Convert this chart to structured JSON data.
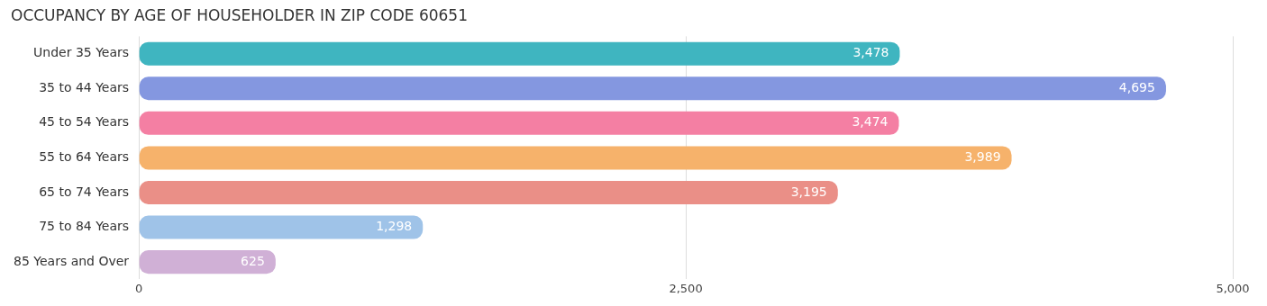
{
  "chart_data": {
    "type": "bar",
    "orientation": "horizontal",
    "title": "OCCUPANCY BY AGE OF HOUSEHOLDER IN ZIP CODE 60651",
    "categories": [
      "Under 35 Years",
      "35 to 44 Years",
      "45 to 54 Years",
      "55 to 64 Years",
      "65 to 74 Years",
      "75 to 84 Years",
      "85 Years and Over"
    ],
    "values": [
      3478,
      4695,
      3474,
      3989,
      3195,
      1298,
      625
    ],
    "value_labels": [
      "3,478",
      "4,695",
      "3,474",
      "3,989",
      "3,195",
      "1,298",
      "625"
    ],
    "colors": [
      "#3fb5c0",
      "#8497e0",
      "#f47fa3",
      "#f6b26b",
      "#ea8f87",
      "#9fc3e8",
      "#d0b0d6"
    ],
    "xlim": [
      0,
      5000
    ],
    "xticks": [
      0,
      {
        "value": 2500,
        "label": "2,500"
      },
      {
        "value": 5000,
        "label": "5,000"
      }
    ],
    "grid": "x",
    "legend": false
  }
}
